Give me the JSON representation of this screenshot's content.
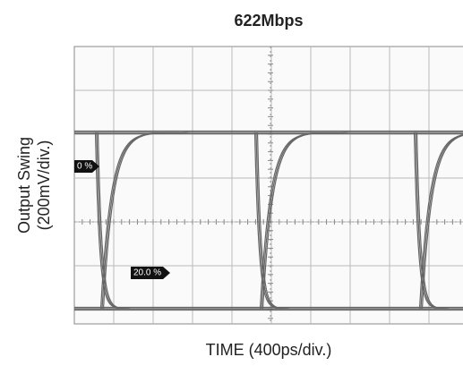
{
  "chart_data": {
    "type": "eye",
    "title": "622Mbps",
    "x_label": "TIME (400ps/div.)",
    "y_label": [
      "Output Swing",
      "(200mV/div.)"
    ],
    "annotations": [
      "0 %",
      "20.0 %"
    ]
  }
}
